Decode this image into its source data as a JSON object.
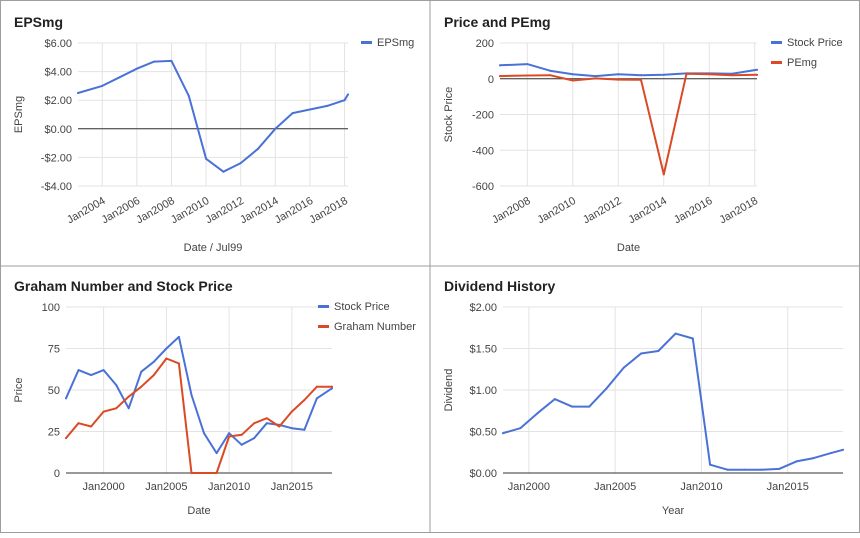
{
  "colors": {
    "blue": "#4a72d6",
    "red": "#db4a25",
    "grid": "#e3e3e3",
    "zero_line": "#333333",
    "text": "#444444",
    "title": "#222222",
    "border": "#9e9e9e"
  },
  "chart_data": [
    {
      "type": "line",
      "title": "EPSmg",
      "xlabel": "Date / Jul99",
      "ylabel": "EPSmg",
      "x_axis": "date",
      "xlim": [
        2002.6,
        2018.2
      ],
      "ylim": [
        -4,
        6
      ],
      "yticks": [
        -4,
        -2,
        0,
        2,
        4,
        6
      ],
      "ytick_labels": [
        "-$4.00",
        "-$2.00",
        "$0.00",
        "$2.00",
        "$4.00",
        "$6.00"
      ],
      "xticks": [
        2004,
        2006,
        2008,
        2010,
        2012,
        2014,
        2016,
        2018
      ],
      "xtick_labels": [
        "Jan2004",
        "Jan2006",
        "Jan2008",
        "Jan2010",
        "Jan2012",
        "Jan2014",
        "Jan2016",
        "Jan2018"
      ],
      "x_tick_rotation": "slanted",
      "vertical_grid": true,
      "zero_line": true,
      "legend": "top-right",
      "series": [
        {
          "name": "EPSmg",
          "color": "blue",
          "x": [
            2002.6,
            2004,
            2005,
            2006,
            2007,
            2008,
            2009,
            2010,
            2011,
            2012,
            2013,
            2014,
            2015,
            2016,
            2017,
            2018,
            2018.2
          ],
          "y": [
            2.5,
            3.0,
            3.6,
            4.2,
            4.7,
            4.75,
            2.3,
            -2.1,
            -3.0,
            -2.4,
            -1.4,
            0.0,
            1.1,
            1.35,
            1.6,
            2.0,
            2.4
          ]
        }
      ]
    },
    {
      "type": "line",
      "title": "Price and PEmg",
      "xlabel": "Date",
      "ylabel": "Stock Price",
      "x_axis": "date",
      "xlim": [
        2006.8,
        2018.1
      ],
      "ylim": [
        -600,
        200
      ],
      "yticks": [
        -600,
        -400,
        -200,
        0,
        200
      ],
      "ytick_labels": [
        "-600",
        "-400",
        "-200",
        "0",
        "200"
      ],
      "xticks": [
        2008,
        2010,
        2012,
        2014,
        2016,
        2018
      ],
      "xtick_labels": [
        "Jan2008",
        "Jan2010",
        "Jan2012",
        "Jan2014",
        "Jan2016",
        "Jan2018"
      ],
      "x_tick_rotation": "slanted",
      "vertical_grid": true,
      "zero_line": true,
      "legend": "top-right",
      "series": [
        {
          "name": "Stock Price",
          "color": "blue",
          "x": [
            2006.8,
            2008,
            2009,
            2010,
            2011,
            2012,
            2013,
            2014,
            2015,
            2016,
            2017,
            2018.1
          ],
          "y": [
            75,
            82,
            45,
            25,
            15,
            25,
            20,
            22,
            30,
            30,
            28,
            50
          ]
        },
        {
          "name": "PEmg",
          "color": "red",
          "x": [
            2006.8,
            2008,
            2009,
            2010,
            2011,
            2012,
            2013,
            2014,
            2015,
            2016,
            2017,
            2018.1
          ],
          "y": [
            15,
            18,
            20,
            -10,
            2,
            -5,
            -6,
            -535,
            28,
            25,
            20,
            22
          ]
        }
      ]
    },
    {
      "type": "line",
      "title": "Graham Number and Stock Price",
      "xlabel": "Date",
      "ylabel": "Price",
      "x_axis": "date",
      "xlim": [
        1997,
        2018.2
      ],
      "ylim": [
        0,
        100
      ],
      "yticks": [
        0,
        25,
        50,
        75,
        100
      ],
      "ytick_labels": [
        "0",
        "25",
        "50",
        "75",
        "100"
      ],
      "xticks": [
        2000,
        2005,
        2010,
        2015
      ],
      "xtick_labels": [
        "Jan2000",
        "Jan2005",
        "Jan2010",
        "Jan2015"
      ],
      "x_tick_rotation": "horizontal",
      "vertical_grid": true,
      "zero_line": false,
      "legend": "top-right",
      "series": [
        {
          "name": "Stock Price",
          "color": "blue",
          "x": [
            1997,
            1998,
            1999,
            2000,
            2001,
            2002,
            2003,
            2004,
            2005,
            2006,
            2007,
            2008,
            2009,
            2010,
            2011,
            2012,
            2013,
            2014,
            2015,
            2016,
            2017,
            2018.2
          ],
          "y": [
            45,
            62,
            59,
            62,
            53,
            39,
            61,
            67,
            75,
            82,
            47,
            24,
            12,
            24,
            17,
            21,
            30,
            29,
            27,
            26,
            45,
            51
          ]
        },
        {
          "name": "Graham Number",
          "color": "red",
          "x": [
            1997,
            1998,
            1999,
            2000,
            2001,
            2002,
            2003,
            2004,
            2005,
            2006,
            2007,
            2007.4,
            2008,
            2009,
            2010,
            2011,
            2012,
            2013,
            2014,
            2015,
            2016,
            2017,
            2018.2
          ],
          "y": [
            21,
            30,
            28,
            37,
            39,
            46,
            52,
            59,
            69,
            66,
            0,
            0,
            0,
            0,
            22,
            23,
            30,
            33,
            28,
            37,
            44,
            52,
            52
          ]
        }
      ]
    },
    {
      "type": "line",
      "title": "Dividend History",
      "xlabel": "Year",
      "ylabel": "Dividend",
      "x_axis": "date",
      "xlim": [
        1998.5,
        2018.2
      ],
      "ylim": [
        0,
        2
      ],
      "yticks": [
        0,
        0.5,
        1,
        1.5,
        2
      ],
      "ytick_labels": [
        "$0.00",
        "$0.50",
        "$1.00",
        "$1.50",
        "$2.00"
      ],
      "xticks": [
        2000,
        2005,
        2010,
        2015
      ],
      "xtick_labels": [
        "Jan2000",
        "Jan2005",
        "Jan2010",
        "Jan2015"
      ],
      "x_tick_rotation": "horizontal",
      "vertical_grid": true,
      "zero_line": false,
      "legend": "none",
      "series": [
        {
          "name": "",
          "color": "blue",
          "x": [
            1998.5,
            1999.5,
            2000.5,
            2001.5,
            2002.5,
            2003.5,
            2004.5,
            2005.5,
            2006.5,
            2007.5,
            2008.5,
            2009.5,
            2010.5,
            2011.5,
            2012.5,
            2013.5,
            2014.5,
            2015.5,
            2016.5,
            2017.5,
            2018.2
          ],
          "y": [
            0.48,
            0.54,
            0.72,
            0.89,
            0.8,
            0.8,
            1.02,
            1.27,
            1.44,
            1.47,
            1.68,
            1.62,
            0.1,
            0.04,
            0.04,
            0.04,
            0.05,
            0.14,
            0.18,
            0.24,
            0.28
          ]
        }
      ]
    }
  ]
}
